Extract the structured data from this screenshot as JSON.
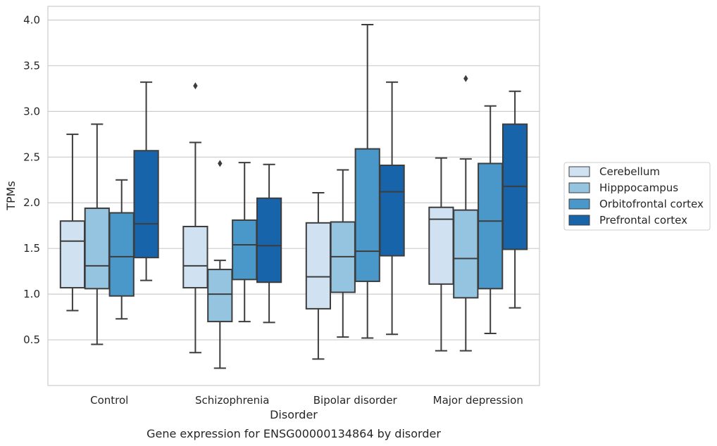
{
  "chart_data": {
    "type": "box",
    "title": "",
    "caption": "Gene expression for ENSG00000134864 by disorder",
    "xlabel": "Disorder",
    "ylabel": "TPMs",
    "ylim": [
      0.0,
      4.15
    ],
    "yticks": [
      0.5,
      1.0,
      1.5,
      2.0,
      2.5,
      3.0,
      3.5,
      4.0
    ],
    "ytick_labels": [
      "0.5",
      "1.0",
      "1.5",
      "2.0",
      "2.5",
      "3.0",
      "3.5",
      "4.0"
    ],
    "grid": "horizontal",
    "legend_position": "right",
    "categories": [
      "Control",
      "Schizophrenia",
      "Bipolar disorder",
      "Major depression"
    ],
    "series": [
      {
        "name": "Cerebellum",
        "color": "#d0e1f2",
        "boxes": [
          {
            "whisker_low": 0.82,
            "q1": 1.07,
            "median": 1.58,
            "q3": 1.8,
            "whisker_high": 2.75,
            "outliers": []
          },
          {
            "whisker_low": 0.36,
            "q1": 1.07,
            "median": 1.31,
            "q3": 1.74,
            "whisker_high": 2.66,
            "outliers": [
              3.28
            ]
          },
          {
            "whisker_low": 0.29,
            "q1": 0.84,
            "median": 1.19,
            "q3": 1.78,
            "whisker_high": 2.11,
            "outliers": []
          },
          {
            "whisker_low": 0.38,
            "q1": 1.11,
            "median": 1.82,
            "q3": 1.95,
            "whisker_high": 2.49,
            "outliers": []
          }
        ]
      },
      {
        "name": "Hipppocampus",
        "color": "#94c4df",
        "boxes": [
          {
            "whisker_low": 0.45,
            "q1": 1.06,
            "median": 1.31,
            "q3": 1.94,
            "whisker_high": 2.86,
            "outliers": []
          },
          {
            "whisker_low": 0.19,
            "q1": 0.7,
            "median": 1.0,
            "q3": 1.27,
            "whisker_high": 1.37,
            "outliers": [
              2.43
            ]
          },
          {
            "whisker_low": 0.53,
            "q1": 1.02,
            "median": 1.41,
            "q3": 1.79,
            "whisker_high": 2.36,
            "outliers": []
          },
          {
            "whisker_low": 0.38,
            "q1": 0.96,
            "median": 1.39,
            "q3": 1.92,
            "whisker_high": 2.48,
            "outliers": [
              3.36
            ]
          }
        ]
      },
      {
        "name": "Orbitofrontal cortex",
        "color": "#4a98c9",
        "boxes": [
          {
            "whisker_low": 0.73,
            "q1": 0.98,
            "median": 1.41,
            "q3": 1.89,
            "whisker_high": 2.25,
            "outliers": []
          },
          {
            "whisker_low": 0.7,
            "q1": 1.16,
            "median": 1.54,
            "q3": 1.81,
            "whisker_high": 2.44,
            "outliers": []
          },
          {
            "whisker_low": 0.52,
            "q1": 1.14,
            "median": 1.47,
            "q3": 2.59,
            "whisker_high": 3.95,
            "outliers": []
          },
          {
            "whisker_low": 0.57,
            "q1": 1.06,
            "median": 1.8,
            "q3": 2.43,
            "whisker_high": 3.06,
            "outliers": []
          }
        ]
      },
      {
        "name": "Prefrontal cortex",
        "color": "#1764ab",
        "boxes": [
          {
            "whisker_low": 1.15,
            "q1": 1.4,
            "median": 1.77,
            "q3": 2.57,
            "whisker_high": 3.32,
            "outliers": []
          },
          {
            "whisker_low": 0.69,
            "q1": 1.13,
            "median": 1.53,
            "q3": 2.05,
            "whisker_high": 2.42,
            "outliers": []
          },
          {
            "whisker_low": 0.56,
            "q1": 1.42,
            "median": 2.12,
            "q3": 2.41,
            "whisker_high": 3.32,
            "outliers": []
          },
          {
            "whisker_low": 0.85,
            "q1": 1.49,
            "median": 2.18,
            "q3": 2.86,
            "whisker_high": 3.22,
            "outliers": []
          }
        ]
      }
    ]
  }
}
